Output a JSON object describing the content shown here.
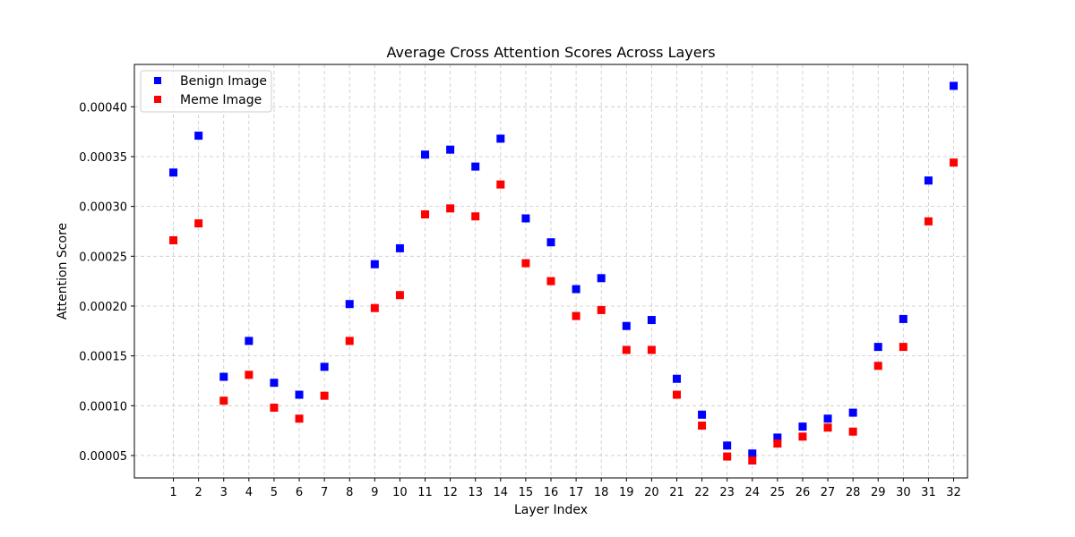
{
  "chart_data": {
    "type": "scatter",
    "title": "Average Cross Attention Scores Across Layers",
    "xlabel": "Layer Index",
    "ylabel": "Attention Score",
    "xlim": [
      -0.55,
      32.55
    ],
    "ylim": [
      2.75e-05,
      0.0004425
    ],
    "grid": true,
    "legend_position": "upper-left",
    "x": [
      1,
      2,
      3,
      4,
      5,
      6,
      7,
      8,
      9,
      10,
      11,
      12,
      13,
      14,
      15,
      16,
      17,
      18,
      19,
      20,
      21,
      22,
      23,
      24,
      25,
      26,
      27,
      28,
      29,
      30,
      31,
      32
    ],
    "x_tick_labels": [
      "1",
      "2",
      "3",
      "4",
      "5",
      "6",
      "7",
      "8",
      "9",
      "10",
      "11",
      "12",
      "13",
      "14",
      "15",
      "16",
      "17",
      "18",
      "19",
      "20",
      "21",
      "22",
      "23",
      "24",
      "25",
      "26",
      "27",
      "28",
      "29",
      "30",
      "31",
      "32"
    ],
    "y_ticks": [
      5e-05,
      0.0001,
      0.00015,
      0.0002,
      0.00025,
      0.0003,
      0.00035,
      0.0004
    ],
    "y_tick_labels": [
      "0.00005",
      "0.00010",
      "0.00015",
      "0.00020",
      "0.00025",
      "0.00030",
      "0.00035",
      "0.00040"
    ],
    "series": [
      {
        "name": "Benign Image",
        "color": "#0000ff",
        "marker": "square",
        "values": [
          0.000334,
          0.000371,
          0.000129,
          0.000165,
          0.000123,
          0.000111,
          0.000139,
          0.000202,
          0.000242,
          0.000258,
          0.000352,
          0.000357,
          0.00034,
          0.000368,
          0.000288,
          0.000264,
          0.000217,
          0.000228,
          0.00018,
          0.000186,
          0.000127,
          9.1e-05,
          6e-05,
          5.2e-05,
          6.8e-05,
          7.9e-05,
          8.7e-05,
          9.3e-05,
          0.000159,
          0.000187,
          0.000326,
          0.000421
        ]
      },
      {
        "name": "Meme Image",
        "color": "#ff0000",
        "marker": "square",
        "values": [
          0.000266,
          0.000283,
          0.000105,
          0.000131,
          9.8e-05,
          8.7e-05,
          0.00011,
          0.000165,
          0.000198,
          0.000211,
          0.000292,
          0.000298,
          0.00029,
          0.000322,
          0.000243,
          0.000225,
          0.00019,
          0.000196,
          0.000156,
          0.000156,
          0.000111,
          8e-05,
          4.9e-05,
          4.5e-05,
          6.2e-05,
          6.9e-05,
          7.8e-05,
          7.4e-05,
          0.00014,
          0.000159,
          0.000285,
          0.000344
        ]
      }
    ]
  }
}
